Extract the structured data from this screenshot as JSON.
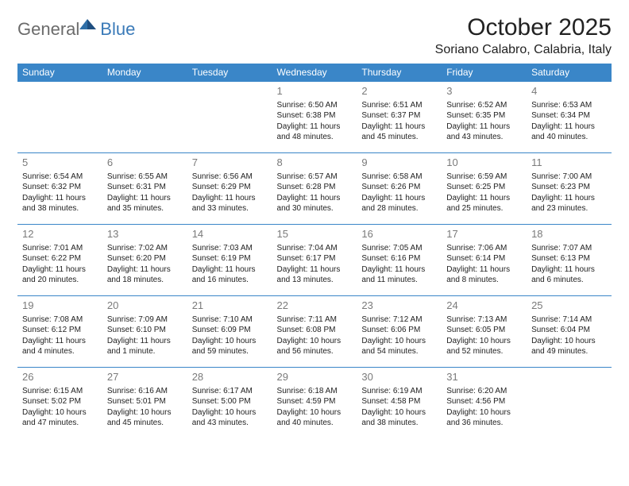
{
  "logo": {
    "general": "General",
    "blue": "Blue"
  },
  "title": "October 2025",
  "location": "Soriano Calabro, Calabria, Italy",
  "colors": {
    "header_bg": "#3a86c8",
    "header_text": "#ffffff",
    "row_border": "#3a86c8",
    "day_num": "#7a7a7a",
    "body_text": "#222222",
    "logo_gray": "#6b6b6b",
    "logo_blue": "#3a7ab8",
    "page_bg": "#ffffff"
  },
  "weekdays": [
    "Sunday",
    "Monday",
    "Tuesday",
    "Wednesday",
    "Thursday",
    "Friday",
    "Saturday"
  ],
  "weeks": [
    [
      null,
      null,
      null,
      {
        "d": "1",
        "sr": "Sunrise: 6:50 AM",
        "ss": "Sunset: 6:38 PM",
        "dl1": "Daylight: 11 hours",
        "dl2": "and 48 minutes."
      },
      {
        "d": "2",
        "sr": "Sunrise: 6:51 AM",
        "ss": "Sunset: 6:37 PM",
        "dl1": "Daylight: 11 hours",
        "dl2": "and 45 minutes."
      },
      {
        "d": "3",
        "sr": "Sunrise: 6:52 AM",
        "ss": "Sunset: 6:35 PM",
        "dl1": "Daylight: 11 hours",
        "dl2": "and 43 minutes."
      },
      {
        "d": "4",
        "sr": "Sunrise: 6:53 AM",
        "ss": "Sunset: 6:34 PM",
        "dl1": "Daylight: 11 hours",
        "dl2": "and 40 minutes."
      }
    ],
    [
      {
        "d": "5",
        "sr": "Sunrise: 6:54 AM",
        "ss": "Sunset: 6:32 PM",
        "dl1": "Daylight: 11 hours",
        "dl2": "and 38 minutes."
      },
      {
        "d": "6",
        "sr": "Sunrise: 6:55 AM",
        "ss": "Sunset: 6:31 PM",
        "dl1": "Daylight: 11 hours",
        "dl2": "and 35 minutes."
      },
      {
        "d": "7",
        "sr": "Sunrise: 6:56 AM",
        "ss": "Sunset: 6:29 PM",
        "dl1": "Daylight: 11 hours",
        "dl2": "and 33 minutes."
      },
      {
        "d": "8",
        "sr": "Sunrise: 6:57 AM",
        "ss": "Sunset: 6:28 PM",
        "dl1": "Daylight: 11 hours",
        "dl2": "and 30 minutes."
      },
      {
        "d": "9",
        "sr": "Sunrise: 6:58 AM",
        "ss": "Sunset: 6:26 PM",
        "dl1": "Daylight: 11 hours",
        "dl2": "and 28 minutes."
      },
      {
        "d": "10",
        "sr": "Sunrise: 6:59 AM",
        "ss": "Sunset: 6:25 PM",
        "dl1": "Daylight: 11 hours",
        "dl2": "and 25 minutes."
      },
      {
        "d": "11",
        "sr": "Sunrise: 7:00 AM",
        "ss": "Sunset: 6:23 PM",
        "dl1": "Daylight: 11 hours",
        "dl2": "and 23 minutes."
      }
    ],
    [
      {
        "d": "12",
        "sr": "Sunrise: 7:01 AM",
        "ss": "Sunset: 6:22 PM",
        "dl1": "Daylight: 11 hours",
        "dl2": "and 20 minutes."
      },
      {
        "d": "13",
        "sr": "Sunrise: 7:02 AM",
        "ss": "Sunset: 6:20 PM",
        "dl1": "Daylight: 11 hours",
        "dl2": "and 18 minutes."
      },
      {
        "d": "14",
        "sr": "Sunrise: 7:03 AM",
        "ss": "Sunset: 6:19 PM",
        "dl1": "Daylight: 11 hours",
        "dl2": "and 16 minutes."
      },
      {
        "d": "15",
        "sr": "Sunrise: 7:04 AM",
        "ss": "Sunset: 6:17 PM",
        "dl1": "Daylight: 11 hours",
        "dl2": "and 13 minutes."
      },
      {
        "d": "16",
        "sr": "Sunrise: 7:05 AM",
        "ss": "Sunset: 6:16 PM",
        "dl1": "Daylight: 11 hours",
        "dl2": "and 11 minutes."
      },
      {
        "d": "17",
        "sr": "Sunrise: 7:06 AM",
        "ss": "Sunset: 6:14 PM",
        "dl1": "Daylight: 11 hours",
        "dl2": "and 8 minutes."
      },
      {
        "d": "18",
        "sr": "Sunrise: 7:07 AM",
        "ss": "Sunset: 6:13 PM",
        "dl1": "Daylight: 11 hours",
        "dl2": "and 6 minutes."
      }
    ],
    [
      {
        "d": "19",
        "sr": "Sunrise: 7:08 AM",
        "ss": "Sunset: 6:12 PM",
        "dl1": "Daylight: 11 hours",
        "dl2": "and 4 minutes."
      },
      {
        "d": "20",
        "sr": "Sunrise: 7:09 AM",
        "ss": "Sunset: 6:10 PM",
        "dl1": "Daylight: 11 hours",
        "dl2": "and 1 minute."
      },
      {
        "d": "21",
        "sr": "Sunrise: 7:10 AM",
        "ss": "Sunset: 6:09 PM",
        "dl1": "Daylight: 10 hours",
        "dl2": "and 59 minutes."
      },
      {
        "d": "22",
        "sr": "Sunrise: 7:11 AM",
        "ss": "Sunset: 6:08 PM",
        "dl1": "Daylight: 10 hours",
        "dl2": "and 56 minutes."
      },
      {
        "d": "23",
        "sr": "Sunrise: 7:12 AM",
        "ss": "Sunset: 6:06 PM",
        "dl1": "Daylight: 10 hours",
        "dl2": "and 54 minutes."
      },
      {
        "d": "24",
        "sr": "Sunrise: 7:13 AM",
        "ss": "Sunset: 6:05 PM",
        "dl1": "Daylight: 10 hours",
        "dl2": "and 52 minutes."
      },
      {
        "d": "25",
        "sr": "Sunrise: 7:14 AM",
        "ss": "Sunset: 6:04 PM",
        "dl1": "Daylight: 10 hours",
        "dl2": "and 49 minutes."
      }
    ],
    [
      {
        "d": "26",
        "sr": "Sunrise: 6:15 AM",
        "ss": "Sunset: 5:02 PM",
        "dl1": "Daylight: 10 hours",
        "dl2": "and 47 minutes."
      },
      {
        "d": "27",
        "sr": "Sunrise: 6:16 AM",
        "ss": "Sunset: 5:01 PM",
        "dl1": "Daylight: 10 hours",
        "dl2": "and 45 minutes."
      },
      {
        "d": "28",
        "sr": "Sunrise: 6:17 AM",
        "ss": "Sunset: 5:00 PM",
        "dl1": "Daylight: 10 hours",
        "dl2": "and 43 minutes."
      },
      {
        "d": "29",
        "sr": "Sunrise: 6:18 AM",
        "ss": "Sunset: 4:59 PM",
        "dl1": "Daylight: 10 hours",
        "dl2": "and 40 minutes."
      },
      {
        "d": "30",
        "sr": "Sunrise: 6:19 AM",
        "ss": "Sunset: 4:58 PM",
        "dl1": "Daylight: 10 hours",
        "dl2": "and 38 minutes."
      },
      {
        "d": "31",
        "sr": "Sunrise: 6:20 AM",
        "ss": "Sunset: 4:56 PM",
        "dl1": "Daylight: 10 hours",
        "dl2": "and 36 minutes."
      },
      null
    ]
  ]
}
